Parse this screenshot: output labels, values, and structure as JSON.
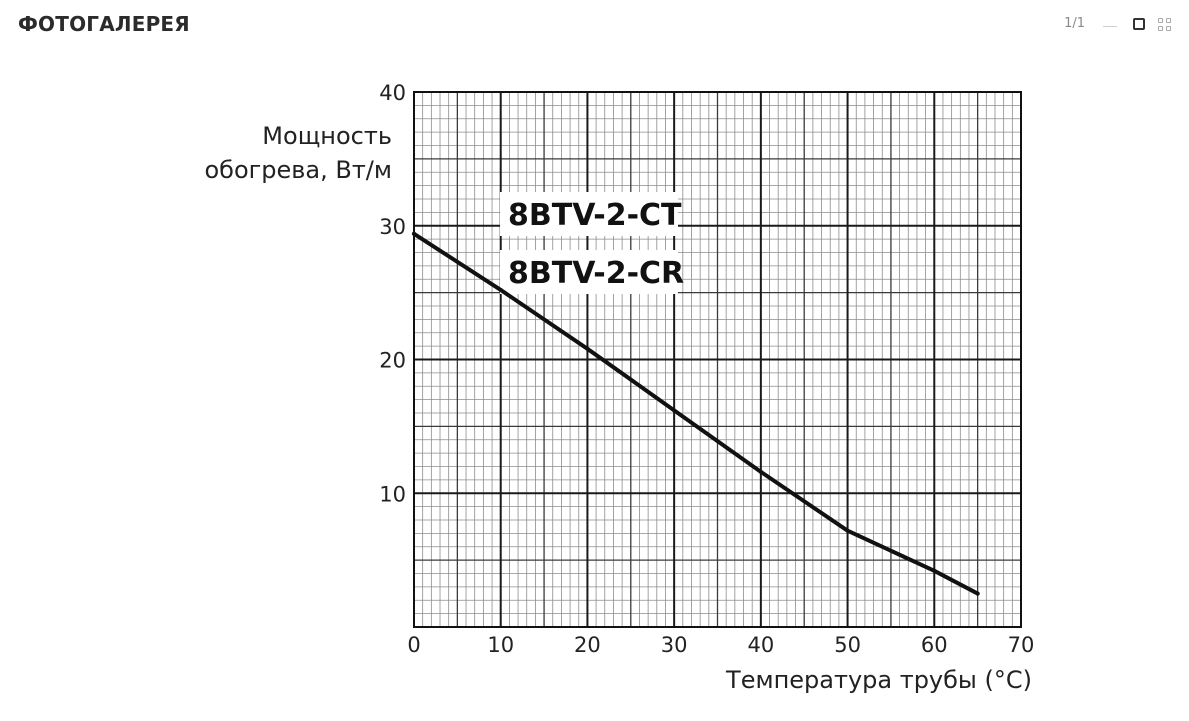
{
  "header": {
    "title": "ФОТОГАЛЕРЕЯ",
    "pager": "1/1"
  },
  "chart_data": {
    "type": "line",
    "title": "",
    "ylabel": [
      "Мощность",
      "обогрева, Вт/м"
    ],
    "xlabel": "Температура трубы (°C)",
    "xlim": [
      0,
      70
    ],
    "ylim": [
      0,
      40
    ],
    "x_ticks": [
      0,
      10,
      20,
      30,
      40,
      50,
      60,
      70
    ],
    "y_ticks": [
      10,
      20,
      30,
      40
    ],
    "grid": true,
    "annotations": [
      "8BTV-2-CT",
      "8BTV-2-CR"
    ],
    "series": [
      {
        "x": [
          0,
          10,
          20,
          30,
          40,
          50,
          60,
          65
        ],
        "y": [
          29.4,
          25.2,
          20.8,
          16.2,
          11.6,
          7.2,
          4.2,
          2.5
        ]
      }
    ]
  }
}
